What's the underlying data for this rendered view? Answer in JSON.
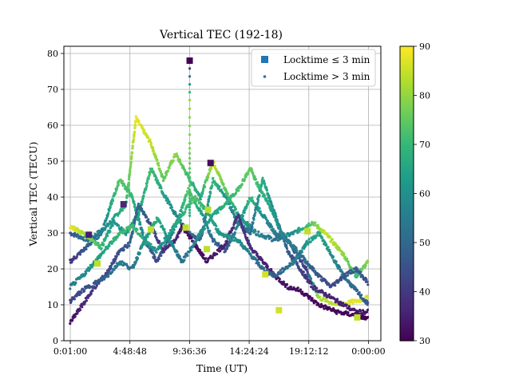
{
  "chart_data": {
    "type": "scatter",
    "title": "Vertical TEC (192-18)",
    "xlabel": "Time (UT)",
    "ylabel": "Vertical TEC (TECU)",
    "x_ticks": [
      "0:01:00",
      "4:48:48",
      "9:36:36",
      "14:24:24",
      "19:12:12",
      "0:00:00"
    ],
    "x_tick_hours": [
      0.0167,
      4.8133,
      9.61,
      14.4067,
      19.2033,
      24.0
    ],
    "xlim_hours": [
      -0.5,
      25.0
    ],
    "y_ticks": [
      0,
      10,
      20,
      30,
      40,
      50,
      60,
      70,
      80
    ],
    "ylim": [
      0,
      82
    ],
    "grid": true,
    "legend": {
      "placement": "top-right",
      "entries": [
        {
          "label": "Locktime ≤ 3 min",
          "marker": "square"
        },
        {
          "label": "Locktime > 3 min",
          "marker": "dot"
        }
      ]
    },
    "colorbar": {
      "range": [
        30,
        90
      ],
      "ticks": [
        30,
        40,
        50,
        60,
        70,
        80,
        90
      ],
      "colormap": "viridis",
      "colors": [
        "#440154",
        "#482878",
        "#3e4989",
        "#31688e",
        "#26828e",
        "#1f9e89",
        "#35b779",
        "#6ece58",
        "#b5de2b",
        "#fde725"
      ]
    },
    "series": [
      {
        "points": [
          [
            0.0,
            30
          ],
          [
            1.5,
            28
          ],
          [
            3.0,
            32
          ],
          [
            4.5,
            38
          ],
          [
            5.3,
            62
          ],
          [
            6.5,
            55
          ],
          [
            7.5,
            45
          ],
          [
            8.5,
            52
          ],
          [
            9.6,
            45
          ],
          [
            10.5,
            40
          ],
          [
            11.5,
            50
          ],
          [
            12.5,
            42
          ],
          [
            13.5,
            35
          ],
          [
            15.0,
            30
          ],
          [
            16.5,
            28
          ],
          [
            18.0,
            30
          ],
          [
            19.5,
            33
          ],
          [
            20.5,
            30
          ],
          [
            22.0,
            24
          ],
          [
            23.0,
            18
          ],
          [
            24.0,
            22
          ]
        ],
        "elev": [
          45,
          55,
          60,
          70,
          88,
          85,
          75,
          80,
          70,
          65,
          85,
          75,
          65,
          58,
          52,
          60,
          75,
          85,
          80,
          70,
          80
        ]
      },
      {
        "points": [
          [
            0.0,
            22
          ],
          [
            1.0,
            25
          ],
          [
            2.5,
            30
          ],
          [
            4.0,
            45
          ],
          [
            5.0,
            40
          ],
          [
            6.0,
            28
          ],
          [
            7.0,
            22
          ],
          [
            8.5,
            32
          ],
          [
            9.5,
            42
          ],
          [
            10.5,
            36
          ],
          [
            11.5,
            28
          ],
          [
            12.5,
            25
          ],
          [
            13.5,
            32
          ],
          [
            14.5,
            40
          ],
          [
            15.5,
            35
          ],
          [
            16.5,
            30
          ],
          [
            17.5,
            28
          ],
          [
            19.0,
            20
          ],
          [
            20.0,
            12
          ],
          [
            21.5,
            10
          ],
          [
            23.0,
            11
          ],
          [
            24.0,
            12
          ]
        ],
        "elev": [
          38,
          45,
          55,
          75,
          70,
          55,
          42,
          60,
          75,
          65,
          50,
          45,
          58,
          70,
          60,
          55,
          50,
          40,
          82,
          85,
          88,
          86
        ]
      },
      {
        "points": [
          [
            0.0,
            32
          ],
          [
            1.5,
            29
          ],
          [
            2.5,
            26
          ],
          [
            3.5,
            33
          ],
          [
            4.5,
            30
          ],
          [
            5.5,
            35
          ],
          [
            6.5,
            48
          ],
          [
            7.5,
            41
          ],
          [
            8.5,
            35
          ],
          [
            9.5,
            30
          ],
          [
            10.5,
            28
          ],
          [
            11.5,
            45
          ],
          [
            12.5,
            40
          ],
          [
            13.5,
            33
          ],
          [
            14.5,
            30
          ],
          [
            15.5,
            45
          ],
          [
            16.5,
            35
          ],
          [
            17.5,
            25
          ],
          [
            18.5,
            20
          ],
          [
            19.5,
            15
          ],
          [
            21.0,
            12
          ],
          [
            23.0,
            8
          ],
          [
            24.0,
            8
          ]
        ],
        "elev": [
          88,
          80,
          70,
          62,
          60,
          65,
          72,
          65,
          58,
          52,
          48,
          70,
          62,
          55,
          50,
          68,
          58,
          48,
          42,
          38,
          36,
          34,
          33
        ]
      },
      {
        "points": [
          [
            0.0,
            5
          ],
          [
            1.0,
            10
          ],
          [
            2.0,
            15
          ],
          [
            3.0,
            19
          ],
          [
            4.0,
            25
          ],
          [
            4.8,
            27
          ],
          [
            5.5,
            38
          ],
          [
            6.5,
            32
          ],
          [
            7.5,
            25
          ],
          [
            8.5,
            28
          ],
          [
            9.0,
            32
          ],
          [
            10.0,
            27
          ],
          [
            11.0,
            22
          ],
          [
            12.5,
            27
          ],
          [
            13.5,
            35
          ],
          [
            14.5,
            26
          ],
          [
            15.5,
            22
          ],
          [
            16.5,
            18
          ],
          [
            17.5,
            15
          ],
          [
            18.5,
            14
          ],
          [
            20.0,
            10
          ],
          [
            21.5,
            8
          ],
          [
            23.0,
            7
          ],
          [
            24.0,
            6
          ]
        ],
        "elev": [
          32,
          36,
          40,
          42,
          45,
          48,
          50,
          44,
          38,
          36,
          34,
          32,
          33,
          36,
          40,
          38,
          36,
          34,
          33,
          32,
          31,
          31,
          30,
          30
        ]
      },
      {
        "points": [
          [
            0.0,
            15
          ],
          [
            1.0,
            18
          ],
          [
            2.0,
            22
          ],
          [
            3.0,
            26
          ],
          [
            4.0,
            30
          ],
          [
            5.0,
            32
          ],
          [
            6.0,
            28
          ],
          [
            7.0,
            25
          ],
          [
            8.0,
            30
          ],
          [
            9.0,
            35
          ],
          [
            10.0,
            40
          ],
          [
            11.0,
            36
          ],
          [
            12.0,
            30
          ],
          [
            13.5,
            28
          ],
          [
            14.5,
            24
          ],
          [
            15.5,
            20
          ],
          [
            16.5,
            18
          ],
          [
            18.0,
            22
          ],
          [
            19.0,
            27
          ],
          [
            20.0,
            30
          ],
          [
            21.0,
            24
          ],
          [
            22.0,
            18
          ],
          [
            23.0,
            14
          ],
          [
            24.0,
            10
          ]
        ],
        "elev": [
          55,
          58,
          62,
          66,
          70,
          72,
          66,
          60,
          64,
          68,
          74,
          68,
          62,
          60,
          55,
          50,
          48,
          55,
          62,
          66,
          60,
          54,
          50,
          46
        ]
      },
      {
        "points": [
          [
            0.0,
            11
          ],
          [
            1.0,
            14
          ],
          [
            2.0,
            16
          ],
          [
            3.0,
            18
          ],
          [
            4.0,
            22
          ],
          [
            5.0,
            20
          ],
          [
            6.0,
            28
          ],
          [
            7.0,
            34
          ],
          [
            8.0,
            28
          ],
          [
            9.0,
            22
          ],
          [
            9.8,
            26
          ],
          [
            10.5,
            30
          ],
          [
            11.5,
            35
          ],
          [
            12.5,
            38
          ],
          [
            13.5,
            42
          ],
          [
            14.5,
            48
          ],
          [
            15.0,
            44
          ],
          [
            16.0,
            38
          ],
          [
            17.0,
            30
          ],
          [
            18.0,
            26
          ],
          [
            19.0,
            22
          ],
          [
            20.0,
            18
          ],
          [
            21.0,
            15
          ],
          [
            22.0,
            18
          ],
          [
            23.0,
            20
          ],
          [
            24.0,
            16
          ]
        ],
        "elev": [
          42,
          44,
          46,
          50,
          55,
          52,
          62,
          68,
          60,
          52,
          56,
          60,
          65,
          68,
          72,
          76,
          72,
          66,
          58,
          54,
          50,
          46,
          43,
          45,
          48,
          44
        ]
      },
      {
        "points": [
          [
            9.62,
            78
          ],
          [
            9.62,
            67
          ],
          [
            9.62,
            55
          ],
          [
            9.62,
            48
          ],
          [
            9.62,
            42
          ],
          [
            9.62,
            38
          ],
          [
            9.62,
            34
          ]
        ],
        "elev": [
          30,
          80,
          78,
          75,
          72,
          70,
          68
        ]
      }
    ],
    "locktime_short": [
      {
        "x": 9.62,
        "y": 78,
        "elev": 30
      },
      {
        "x": 1.5,
        "y": 29.5,
        "elev": 35
      },
      {
        "x": 2.2,
        "y": 21.5,
        "elev": 84
      },
      {
        "x": 4.3,
        "y": 38,
        "elev": 37
      },
      {
        "x": 6.5,
        "y": 31,
        "elev": 84
      },
      {
        "x": 9.3,
        "y": 31.5,
        "elev": 84
      },
      {
        "x": 11.1,
        "y": 36.5,
        "elev": 84
      },
      {
        "x": 11.0,
        "y": 25.5,
        "elev": 84
      },
      {
        "x": 11.3,
        "y": 49.5,
        "elev": 32
      },
      {
        "x": 15.7,
        "y": 18.5,
        "elev": 86
      },
      {
        "x": 16.8,
        "y": 8.5,
        "elev": 86
      },
      {
        "x": 19.1,
        "y": 30.5,
        "elev": 84
      },
      {
        "x": 23.1,
        "y": 6.5,
        "elev": 84
      }
    ]
  }
}
